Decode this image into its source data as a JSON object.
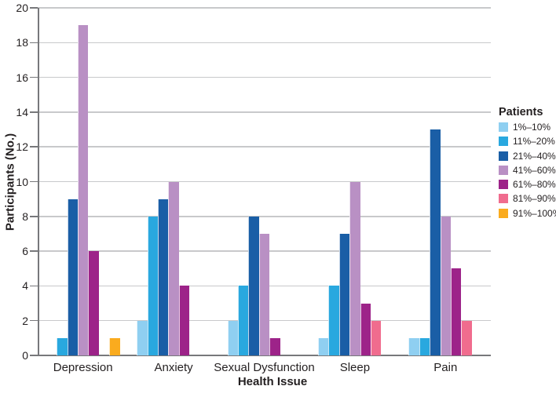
{
  "chart_data": {
    "type": "bar",
    "title": "",
    "xlabel": "Health Issue",
    "ylabel": "Participants (No.)",
    "ylim": [
      0,
      20
    ],
    "ytick_step": 2,
    "yticks": [
      0,
      2,
      4,
      6,
      8,
      10,
      12,
      14,
      16,
      18,
      20
    ],
    "grid": true,
    "legend_title": "Patients",
    "legend_position": "right",
    "categories": [
      "Depression",
      "Anxiety",
      "Sexual Dysfunction",
      "Sleep",
      "Pain"
    ],
    "series": [
      {
        "name": "1%–10%",
        "color": "#8FCFF1",
        "values": [
          0,
          2,
          2,
          1,
          1
        ]
      },
      {
        "name": "11%–20%",
        "color": "#29A8DF",
        "values": [
          1,
          8,
          4,
          4,
          1
        ]
      },
      {
        "name": "21%–40%",
        "color": "#1A5EA6",
        "values": [
          9,
          9,
          8,
          7,
          13
        ]
      },
      {
        "name": "41%–60%",
        "color": "#B990C4",
        "values": [
          19,
          10,
          7,
          10,
          8
        ]
      },
      {
        "name": "61%–80%",
        "color": "#9D2389",
        "values": [
          6,
          4,
          1,
          3,
          5
        ]
      },
      {
        "name": "81%–90%",
        "color": "#F06C8E",
        "values": [
          0,
          0,
          0,
          2,
          2
        ]
      },
      {
        "name": "91%–100%",
        "color": "#FAAB1E",
        "values": [
          1,
          0,
          0,
          0,
          0
        ]
      }
    ],
    "colors": {
      "gridline": "#C8C9CB",
      "axis": "#77787B",
      "text": "#231F20"
    }
  }
}
